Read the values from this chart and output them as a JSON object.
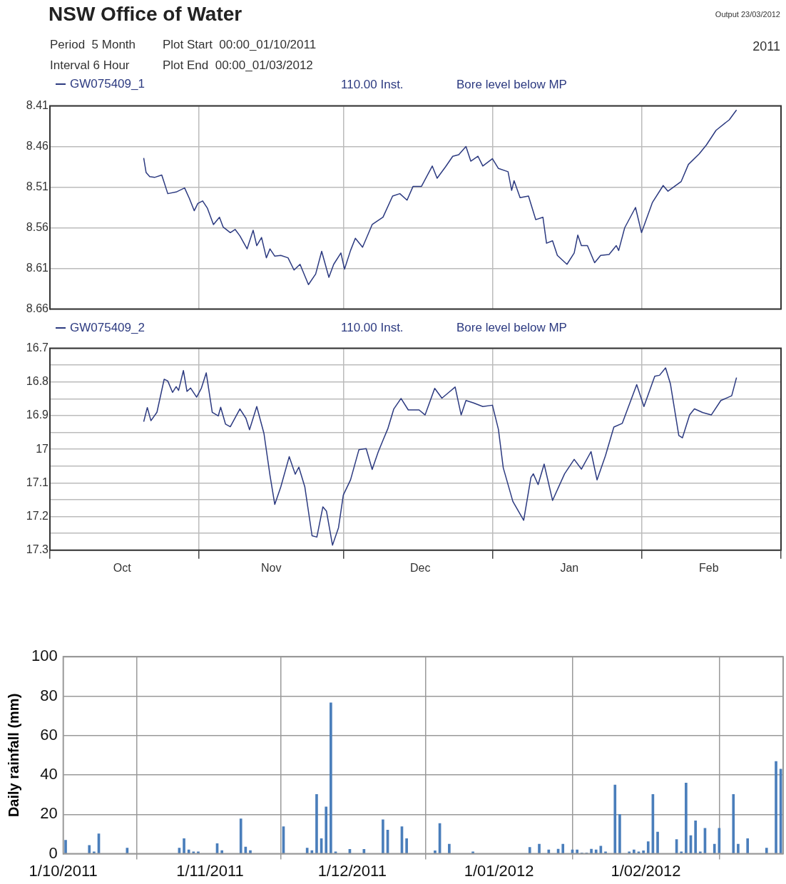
{
  "chart_data": [
    {
      "type": "line",
      "title": "NSW Office of Water",
      "annotations": [
        "Period  5 Month",
        "Plot Start  00:00_01/10/2011",
        "Interval 6 Hour",
        "Plot End  00:00_01/03/2012",
        "Output 23/03/2012",
        "2011",
        "110.00 Inst.",
        "Bore level below MP"
      ],
      "series": [
        {
          "name": "GW075409_1",
          "color": "#2c3a80",
          "x": [
            "2011-10-20T12:00",
            "2011-10-21T00:00",
            "2011-10-21T18:00",
            "2011-10-22T18:00",
            "2011-10-24T06:00",
            "2011-10-25T12:00",
            "2011-10-27T06:00",
            "2011-10-29T00:00",
            "2011-10-30T00:00",
            "2011-10-31T00:00",
            "2011-10-31T18:00",
            "2011-11-01T18:00",
            "2011-11-02T18:00",
            "2011-11-04T00:00",
            "2011-11-05T06:00",
            "2011-11-06T00:00",
            "2011-11-07T12:00",
            "2011-11-08T12:00",
            "2011-11-09T12:00",
            "2011-11-11T00:00",
            "2011-11-12T06:00",
            "2011-11-13T00:00",
            "2011-11-14T00:00",
            "2011-11-15T00:00",
            "2011-11-15T18:00",
            "2011-11-16T18:00",
            "2011-11-18T00:00",
            "2011-11-19T12:00",
            "2011-11-20T18:00",
            "2011-11-22T00:00",
            "2011-11-23T18:00",
            "2011-11-25T06:00",
            "2011-11-26T12:00",
            "2011-11-28T00:00",
            "2011-11-29T00:00",
            "2011-11-30T12:00",
            "2011-12-01T06:00",
            "2011-12-02T12:00",
            "2011-12-03T12:00",
            "2011-12-05T00:00",
            "2011-12-07T00:00",
            "2011-12-09T06:00",
            "2011-12-11T06:00",
            "2011-12-12T18:00",
            "2011-12-14T06:00",
            "2011-12-15T12:00",
            "2011-12-17T06:00",
            "2011-12-19T12:00",
            "2011-12-20T12:00",
            "2011-12-22T06:00",
            "2011-12-23T18:00",
            "2011-12-25T00:00",
            "2011-12-26T12:00",
            "2011-12-27T12:00",
            "2011-12-29T00:00",
            "2011-12-30T00:00",
            "2012-01-01T00:00",
            "2012-01-02T06:00",
            "2012-01-04T06:00",
            "2012-01-05T00:00",
            "2012-01-05T12:00",
            "2012-01-06T18:00",
            "2012-01-08T12:00",
            "2012-01-10T00:00",
            "2012-01-11T12:00",
            "2012-01-12T06:00",
            "2012-01-13T12:00",
            "2012-01-14T12:00",
            "2012-01-16T12:00",
            "2012-01-18T00:00",
            "2012-01-18T18:00",
            "2012-01-19T12:00",
            "2012-01-20T18:00",
            "2012-01-22T06:00",
            "2012-01-23T12:00",
            "2012-01-25T06:00",
            "2012-01-26T18:00",
            "2012-01-27T06:00",
            "2012-01-28T12:00",
            "2012-01-30T18:00",
            "2012-02-01T00:00",
            "2012-02-03T06:00",
            "2012-02-05T12:00",
            "2012-02-06T12:00",
            "2012-02-09T06:00",
            "2012-02-10T18:00",
            "2012-02-13T00:00",
            "2012-02-14T12:00",
            "2012-02-16T12:00",
            "2012-02-19T06:00",
            "2012-02-20T18:00"
          ],
          "values": [
            8.474,
            8.492,
            8.497,
            8.498,
            8.495,
            8.518,
            8.516,
            8.511,
            8.524,
            8.539,
            8.53,
            8.527,
            8.536,
            8.556,
            8.547,
            8.559,
            8.566,
            8.562,
            8.57,
            8.586,
            8.563,
            8.582,
            8.572,
            8.597,
            8.586,
            8.595,
            8.594,
            8.597,
            8.612,
            8.605,
            8.63,
            8.617,
            8.589,
            8.621,
            8.605,
            8.591,
            8.611,
            8.588,
            8.573,
            8.584,
            8.556,
            8.547,
            8.521,
            8.518,
            8.526,
            8.509,
            8.509,
            8.484,
            8.499,
            8.485,
            8.472,
            8.47,
            8.46,
            8.478,
            8.472,
            8.484,
            8.475,
            8.487,
            8.491,
            8.514,
            8.502,
            8.523,
            8.521,
            8.55,
            8.547,
            8.579,
            8.576,
            8.594,
            8.605,
            8.591,
            8.569,
            8.582,
            8.582,
            8.603,
            8.594,
            8.593,
            8.582,
            8.588,
            8.56,
            8.535,
            8.566,
            8.529,
            8.508,
            8.515,
            8.503,
            8.482,
            8.469,
            8.458,
            8.44,
            8.427,
            8.415
          ]
        }
      ],
      "xlim": [
        "2011-10-01",
        "2012-03-01"
      ],
      "xticks": [
        {
          "value": "2011-10-01",
          "label": null
        },
        {
          "value": "2011-11-01",
          "label": null
        },
        {
          "value": "2011-12-01",
          "label": null
        },
        {
          "value": "2012-01-01",
          "label": null
        },
        {
          "value": "2012-02-01",
          "label": null
        },
        {
          "value": "2012-03-01",
          "label": null
        }
      ],
      "ylim": [
        8.66,
        8.41
      ],
      "yticks": [
        8.41,
        8.46,
        8.51,
        8.56,
        8.61,
        8.66
      ],
      "grid": true,
      "legend": "top left",
      "tick_labels": "y",
      "marker": "none"
    },
    {
      "type": "line",
      "annotations": [
        "110.00 Inst.",
        "Bore level below MP"
      ],
      "series": [
        {
          "name": "GW075409_2",
          "color": "#2c3a80",
          "x": [
            "2011-10-20T12:00",
            "2011-10-21T06:00",
            "2011-10-22T00:00",
            "2011-10-23T06:00",
            "2011-10-24T18:00",
            "2011-10-25T12:00",
            "2011-10-26T12:00",
            "2011-10-27T06:00",
            "2011-10-27T18:00",
            "2011-10-28T18:00",
            "2011-10-29T12:00",
            "2011-10-30T06:00",
            "2011-10-31T12:00",
            "2011-11-01T12:00",
            "2011-11-02T12:00",
            "2011-11-03T18:00",
            "2011-11-05T00:00",
            "2011-11-05T12:00",
            "2011-11-06T12:00",
            "2011-11-07T12:00",
            "2011-11-09T12:00",
            "2011-11-10T18:00",
            "2011-11-11T12:00",
            "2011-11-13T00:00",
            "2011-11-14T12:00",
            "2011-11-15T18:00",
            "2011-11-16T18:00",
            "2011-11-18T00:00",
            "2011-11-19T18:00",
            "2011-11-21T00:00",
            "2011-11-21T18:00",
            "2011-11-23T00:00",
            "2011-11-24T12:00",
            "2011-11-25T12:00",
            "2011-11-26T18:00",
            "2011-11-27T12:00",
            "2011-11-28T18:00",
            "2011-11-30T00:00",
            "2011-12-01T00:00",
            "2011-12-02T12:00",
            "2011-12-04T06:00",
            "2011-12-05T18:00",
            "2011-12-07T00:00",
            "2011-12-08T06:00",
            "2011-12-09T06:00",
            "2011-12-10T06:00",
            "2011-12-11T12:00",
            "2011-12-13T00:00",
            "2011-12-14T12:00",
            "2011-12-16T18:00",
            "2011-12-18T00:00",
            "2011-12-20T00:00",
            "2011-12-21T12:00",
            "2011-12-23T00:00",
            "2011-12-24T06:00",
            "2011-12-25T12:00",
            "2011-12-26T12:00",
            "2011-12-28T00:00",
            "2011-12-30T00:00",
            "2012-01-01T00:00",
            "2012-01-02T06:00",
            "2012-01-03T06:00",
            "2012-01-05T06:00",
            "2012-01-07T12:00",
            "2012-01-09T00:00",
            "2012-01-09T12:00",
            "2012-01-10T12:00",
            "2012-01-11T18:00",
            "2012-01-13T12:00",
            "2012-01-16T00:00",
            "2012-01-18T00:00",
            "2012-01-19T12:00",
            "2012-01-21T12:00",
            "2012-01-22T18:00",
            "2012-01-24T12:00",
            "2012-01-26T06:00",
            "2012-01-28T00:00",
            "2012-01-31T00:00",
            "2012-02-01T12:00",
            "2012-02-03T18:00",
            "2012-02-04T18:00",
            "2012-02-06T00:00",
            "2012-02-07T00:00",
            "2012-02-08T18:00",
            "2012-02-09T12:00",
            "2012-02-11T00:00",
            "2012-02-12T00:00",
            "2012-02-13T18:00",
            "2012-02-15T12:00",
            "2012-02-17T12:00",
            "2012-02-19T18:00",
            "2012-02-20T18:00"
          ],
          "values": [
            16.918,
            16.876,
            16.915,
            16.89,
            16.792,
            16.797,
            16.831,
            16.814,
            16.825,
            16.766,
            16.828,
            16.818,
            16.845,
            16.818,
            16.773,
            16.89,
            16.901,
            16.875,
            16.925,
            16.933,
            16.88,
            16.908,
            16.942,
            16.873,
            16.953,
            17.077,
            17.164,
            17.112,
            17.022,
            17.074,
            17.053,
            17.112,
            17.257,
            17.261,
            17.171,
            17.184,
            17.285,
            17.233,
            17.136,
            17.091,
            17.001,
            16.998,
            17.06,
            17.008,
            16.973,
            16.939,
            16.88,
            16.849,
            16.883,
            16.883,
            16.898,
            16.819,
            16.848,
            16.83,
            16.815,
            16.898,
            16.855,
            16.862,
            16.873,
            16.869,
            16.941,
            17.055,
            17.155,
            17.211,
            17.084,
            17.073,
            17.105,
            17.044,
            17.152,
            17.073,
            17.03,
            17.059,
            17.007,
            17.091,
            17.019,
            16.934,
            16.923,
            16.808,
            16.873,
            16.783,
            16.78,
            16.758,
            16.805,
            16.959,
            16.966,
            16.898,
            16.88,
            16.891,
            16.898,
            16.855,
            16.841,
            16.787
          ]
        }
      ],
      "xlim": [
        "2011-10-01",
        "2012-03-01"
      ],
      "xticks": [
        {
          "value": "2011-10-01",
          "label": null
        },
        {
          "value": "2011-10-16",
          "label": "Oct"
        },
        {
          "value": "2011-11-01",
          "label": null
        },
        {
          "value": "2011-11-16",
          "label": "Nov"
        },
        {
          "value": "2011-12-01",
          "label": null
        },
        {
          "value": "2011-12-17",
          "label": "Dec"
        },
        {
          "value": "2012-01-01",
          "label": null
        },
        {
          "value": "2012-01-17",
          "label": "Jan"
        },
        {
          "value": "2012-02-01",
          "label": null
        },
        {
          "value": "2012-02-15",
          "label": "Feb"
        },
        {
          "value": "2012-03-01",
          "label": null
        }
      ],
      "ylim": [
        17.3,
        16.7
      ],
      "yticks": [
        16.7,
        {
          "value": 16.75,
          "label": null
        },
        16.8,
        {
          "value": 16.85,
          "label": null
        },
        16.9,
        {
          "value": 16.95,
          "label": null
        },
        17,
        {
          "value": 17.05,
          "label": null
        },
        17.1,
        {
          "value": 17.15,
          "label": null
        },
        17.2,
        {
          "value": 17.25,
          "label": null
        },
        17.3
      ],
      "grid": true,
      "legend": "top left",
      "marker": "none"
    },
    {
      "type": "bar",
      "ylabel": "Daily rainfall (mm)",
      "color": "#4a7ebb",
      "x": [
        "2011-10-01",
        "2011-10-06",
        "2011-10-07",
        "2011-10-08",
        "2011-10-14",
        "2011-10-25",
        "2011-10-26",
        "2011-10-27",
        "2011-10-28",
        "2011-10-29",
        "2011-11-02",
        "2011-11-03",
        "2011-11-07",
        "2011-11-08",
        "2011-11-09",
        "2011-11-16",
        "2011-11-21",
        "2011-11-22",
        "2011-11-23",
        "2011-11-24",
        "2011-11-25",
        "2011-11-26",
        "2011-11-27",
        "2011-11-30",
        "2011-12-03",
        "2011-12-07",
        "2011-12-08",
        "2011-12-11",
        "2011-12-12",
        "2011-12-18",
        "2011-12-19",
        "2011-12-21",
        "2011-12-26",
        "2012-01-07",
        "2012-01-09",
        "2012-01-11",
        "2012-01-13",
        "2012-01-14",
        "2012-01-16",
        "2012-01-17",
        "2012-01-18",
        "2012-01-19",
        "2012-01-20",
        "2012-01-21",
        "2012-01-22",
        "2012-01-23",
        "2012-01-25",
        "2012-01-26",
        "2012-01-28",
        "2012-01-29",
        "2012-01-30",
        "2012-01-31",
        "2012-02-01",
        "2012-02-02",
        "2012-02-03",
        "2012-02-07",
        "2012-02-08",
        "2012-02-09",
        "2012-02-10",
        "2012-02-11",
        "2012-02-12",
        "2012-02-13",
        "2012-02-15",
        "2012-02-16",
        "2012-02-19",
        "2012-02-20",
        "2012-02-22",
        "2012-02-26",
        "2012-02-28",
        "2012-02-29"
      ],
      "values": [
        6.9,
        4.3,
        1,
        10.1,
        2.9,
        2.9,
        7.7,
        2,
        1,
        1,
        5.2,
        1.6,
        17.7,
        3.4,
        1.6,
        13.8,
        2.9,
        1.6,
        30.1,
        7.7,
        23.8,
        76.6,
        1,
        2.3,
        2.3,
        17.3,
        12,
        13.8,
        7.7,
        1.5,
        15.4,
        4.9,
        1,
        3.3,
        4.9,
        2,
        2.4,
        4.9,
        2,
        2,
        0.5,
        0.5,
        2.4,
        2,
        3.9,
        1,
        34.9,
        20,
        1,
        2,
        1,
        1.5,
        6.2,
        30.1,
        11,
        7.2,
        1,
        35.9,
        9.2,
        16.7,
        1,
        12.9,
        4.9,
        12.9,
        30.1,
        4.9,
        7.7,
        2.9,
        46.9,
        43
      ],
      "xlim": [
        "2011-10-01",
        "2012-03-01"
      ],
      "xticks": [
        {
          "value": "2011-10-01",
          "label": "1/10/2011"
        },
        {
          "value": "2011-11-01",
          "label": "1/11/2011"
        },
        {
          "value": "2011-12-01",
          "label": "1/12/2011"
        },
        {
          "value": "2012-01-01",
          "label": "1/01/2012"
        },
        {
          "value": "2012-02-01",
          "label": "1/02/2012"
        }
      ],
      "ylim": [
        0,
        100
      ],
      "yticks": [
        0,
        20,
        40,
        60,
        80,
        100
      ],
      "grid": true
    }
  ]
}
